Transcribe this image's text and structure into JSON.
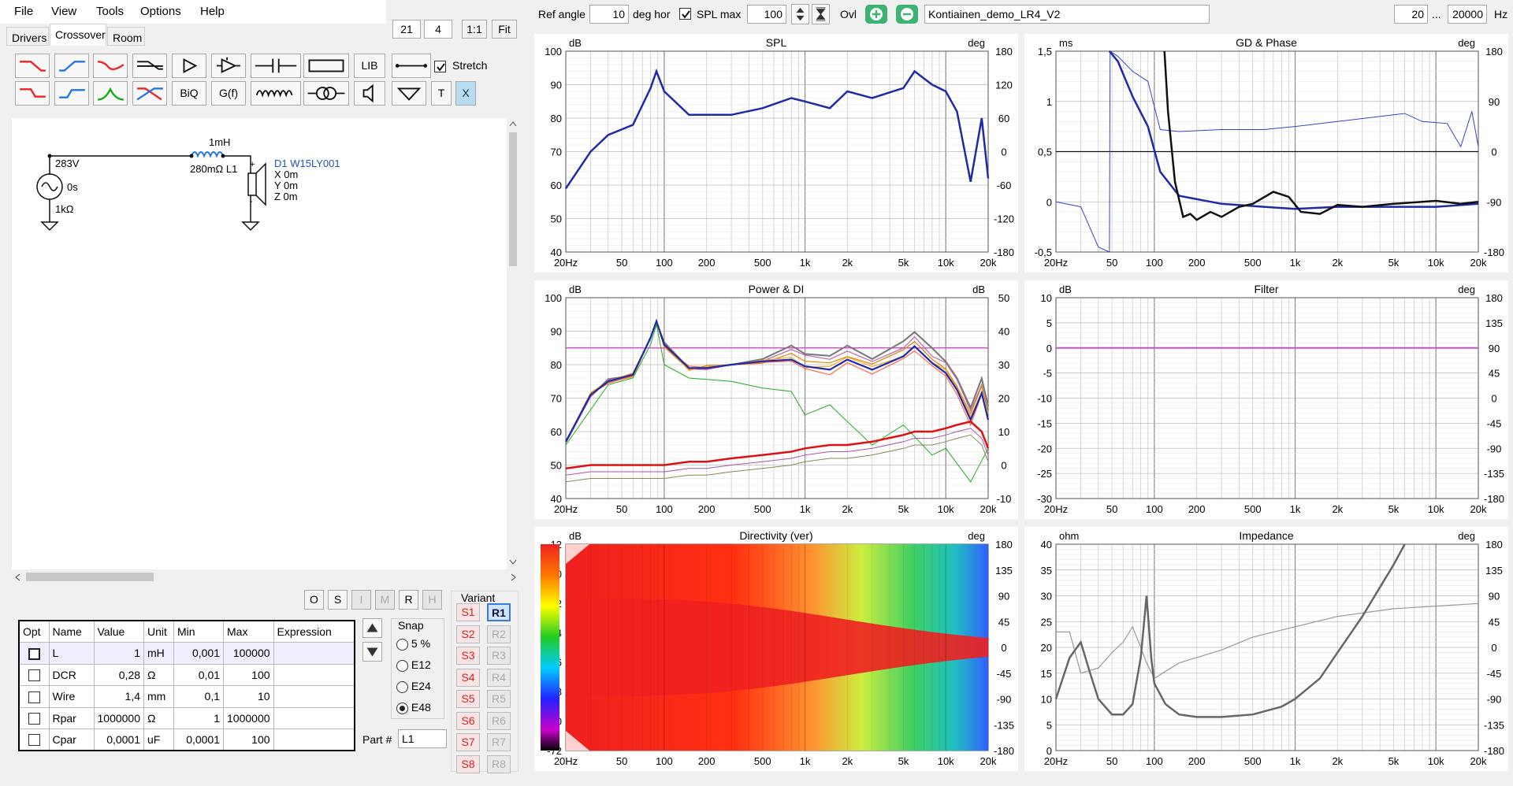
{
  "menu": {
    "file": "File",
    "view": "View",
    "tools": "Tools",
    "options": "Options",
    "help": "Help"
  },
  "tabs": {
    "drivers": "Drivers",
    "crossover": "Crossover",
    "room": "Room"
  },
  "zoom": {
    "a": "21",
    "b": "4",
    "one": "1:1",
    "fit": "Fit"
  },
  "toolbar": {
    "lib": "LIB",
    "biq": "BiQ",
    "gf": "G(f)",
    "t": "T",
    "x": "X",
    "stretch": "Stretch"
  },
  "schematic": {
    "source_v": "283V",
    "source_t": "0s",
    "source_r": "1kΩ",
    "ind_val": "1mH",
    "ind_name": "280mΩ L1",
    "driver_name": "D1 W15LY001",
    "dx": "X 0m",
    "dy": "Y 0m",
    "dz": "Z 0m"
  },
  "osbtns": {
    "o": "O",
    "s": "S",
    "i": "I",
    "m": "M",
    "r": "R",
    "h": "H"
  },
  "params": {
    "headers": [
      "Opt",
      "Name",
      "Value",
      "Unit",
      "Min",
      "Max",
      "Expression"
    ],
    "rows": [
      [
        "L",
        "1",
        "mH",
        "0,001",
        "100000"
      ],
      [
        "DCR",
        "0,28",
        "Ω",
        "0,01",
        "100"
      ],
      [
        "Wire",
        "1,4",
        "mm",
        "0,1",
        "10"
      ],
      [
        "Rpar",
        "1000000",
        "Ω",
        "1",
        "1000000"
      ],
      [
        "Cpar",
        "0,0001",
        "uF",
        "0,0001",
        "100"
      ]
    ]
  },
  "snap": {
    "title": "Snap",
    "opts": [
      "5 %",
      "E12",
      "E24",
      "E48"
    ],
    "selected": "E48"
  },
  "part": {
    "label": "Part #",
    "value": "L1"
  },
  "variant": {
    "title": "Variant",
    "s": [
      "S1",
      "S2",
      "S3",
      "S4",
      "S5",
      "S6",
      "S7",
      "S8"
    ],
    "r": [
      "R1",
      "R2",
      "R3",
      "R4",
      "R5",
      "R6",
      "R7",
      "R8"
    ]
  },
  "topbar": {
    "ref_angle": "Ref angle",
    "ref_val": "10",
    "deg_hor": "deg hor",
    "spl_max": "SPL max",
    "spl_val": "100",
    "ovl": "Ovl",
    "project": "Kontiainen_demo_LR4_V2",
    "f_min": "20",
    "dots": "...",
    "f_max": "20000",
    "hz": "Hz"
  },
  "xticks": [
    "20Hz",
    "50",
    "100",
    "200",
    "500",
    "1k",
    "2k",
    "5k",
    "10k",
    "20k"
  ],
  "charts": {
    "spl": {
      "title": "SPL",
      "lunit": "dB",
      "runit": "deg",
      "left": [
        "100",
        "90",
        "80",
        "70",
        "60",
        "50",
        "40"
      ],
      "right": [
        "180",
        "120",
        "60",
        "0",
        "-60",
        "-120",
        "-180"
      ]
    },
    "gd": {
      "title": "GD & Phase",
      "lunit": "ms",
      "runit": "deg",
      "left": [
        "1,5",
        "1",
        "0,5",
        "0",
        "-0,5"
      ],
      "right": [
        "180",
        "90",
        "0",
        "-90",
        "-180"
      ]
    },
    "pdi": {
      "title": "Power & DI",
      "lunit": "dB",
      "runit": "dB",
      "left": [
        "100",
        "90",
        "80",
        "70",
        "60",
        "50",
        "40"
      ],
      "right": [
        "50",
        "40",
        "30",
        "20",
        "10",
        "0",
        "-10"
      ]
    },
    "filter": {
      "title": "Filter",
      "lunit": "dB",
      "runit": "deg",
      "left": [
        "10",
        "5",
        "0",
        "-5",
        "-10",
        "-15",
        "-20",
        "-25",
        "-30"
      ],
      "right": [
        "180",
        "135",
        "90",
        "45",
        "0",
        "-45",
        "-90",
        "-135",
        "-180"
      ]
    },
    "dir": {
      "title": "Directivity (ver)",
      "lunit": "dB",
      "runit": "deg",
      "left": [
        "12",
        "0",
        "-12",
        "-24",
        "-36",
        "-48",
        "-60",
        "-72"
      ],
      "right": [
        "180",
        "135",
        "90",
        "45",
        "0",
        "-45",
        "-90",
        "-135",
        "-180"
      ]
    },
    "imp": {
      "title": "Impedance",
      "lunit": "ohm",
      "runit": "deg",
      "left": [
        "40",
        "35",
        "30",
        "25",
        "20",
        "15",
        "10",
        "5",
        "0"
      ],
      "right": [
        "180",
        "135",
        "90",
        "45",
        "0",
        "-45",
        "-90",
        "-135",
        "-180"
      ]
    }
  },
  "chart_data": [
    {
      "type": "line",
      "title": "SPL",
      "ylabel": "dB",
      "ylim": [
        40,
        100
      ],
      "x": [
        20,
        30,
        40,
        60,
        80,
        88,
        100,
        150,
        200,
        300,
        500,
        800,
        1000,
        1500,
        2000,
        3000,
        5000,
        6000,
        8000,
        10000,
        12000,
        15000,
        18000,
        20000
      ],
      "series": [
        {
          "values": [
            59,
            70,
            75,
            78,
            89,
            94,
            88,
            81,
            81,
            81,
            83,
            86,
            85,
            83,
            88,
            86,
            89,
            94,
            90,
            88,
            82,
            61,
            80,
            62
          ]
        }
      ]
    },
    {
      "type": "line",
      "title": "Power & DI",
      "ylabel": "dB",
      "ylim": [
        40,
        100
      ],
      "x": [
        20,
        30,
        40,
        60,
        80,
        88,
        100,
        150,
        200,
        300,
        500,
        800,
        1000,
        1500,
        2000,
        3000,
        5000,
        6000,
        8000,
        10000,
        12000,
        15000,
        18000,
        20000
      ],
      "series": [
        {
          "values": [
            57,
            71,
            75,
            77,
            88,
            93,
            86,
            79,
            79,
            80,
            81,
            83,
            81,
            80,
            83,
            80,
            84,
            87,
            82,
            79,
            74,
            65,
            73,
            65
          ]
        },
        {
          "values": [
            49,
            50,
            50,
            50,
            50,
            50,
            50,
            51,
            51,
            52,
            53,
            54,
            55,
            56,
            56,
            57,
            59,
            60,
            60,
            61,
            62,
            63,
            60,
            55
          ]
        }
      ]
    },
    {
      "type": "line",
      "title": "Impedance",
      "ylabel": "ohm",
      "ylim": [
        0,
        40
      ],
      "x": [
        20,
        25,
        30,
        35,
        40,
        50,
        60,
        70,
        80,
        88,
        95,
        100,
        120,
        150,
        200,
        300,
        500,
        800,
        1000,
        1500,
        2000,
        3000,
        5000,
        6000
      ],
      "series": [
        {
          "values": [
            10,
            18,
            21,
            15,
            10,
            7,
            7,
            9,
            18,
            30,
            18,
            13,
            9,
            7,
            6.5,
            6.5,
            7,
            8.5,
            10,
            14,
            19,
            26,
            36,
            40
          ]
        }
      ]
    }
  ]
}
